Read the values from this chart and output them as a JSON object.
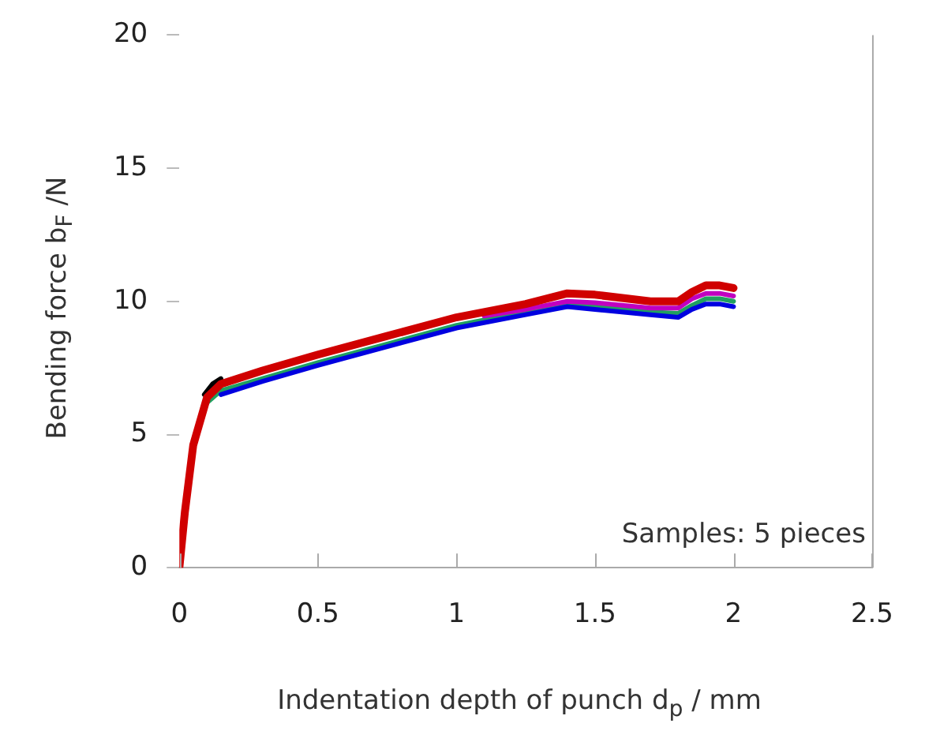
{
  "chart_data": {
    "type": "line",
    "xlabel": "Indentation depth of punch d$_{p}$ / mm",
    "ylabel": "Bending force  b$_{F}$ /N",
    "xlim": [
      0,
      2.5
    ],
    "xticks": [
      0,
      0.5,
      1,
      1.5,
      2,
      2.5
    ],
    "ylim": [
      0,
      20
    ],
    "yticks": [
      0,
      5,
      10,
      15,
      20
    ],
    "grid": false,
    "legend": false,
    "marker": "none",
    "line_style": "solid",
    "annotations": [
      "Samples: 5 pieces"
    ],
    "series": [
      {
        "color": "#000000",
        "x": [
          0.09,
          0.12,
          0.15
        ],
        "values": [
          6.5,
          6.9,
          7.1
        ]
      },
      {
        "color": "#20a060",
        "x": [
          0.1,
          0.15,
          0.3,
          0.5,
          0.75,
          1.0,
          1.25,
          1.4,
          1.5,
          1.7,
          1.8,
          1.85,
          1.9,
          1.95,
          2.0
        ],
        "values": [
          6.2,
          6.65,
          7.1,
          7.7,
          8.4,
          9.1,
          9.6,
          9.9,
          9.8,
          9.6,
          9.55,
          9.85,
          10.1,
          10.1,
          10.0
        ]
      },
      {
        "color": "#0000e0",
        "x": [
          0.15,
          0.3,
          0.5,
          0.75,
          1.0,
          1.25,
          1.4,
          1.5,
          1.7,
          1.8,
          1.85,
          1.9,
          1.95,
          2.0
        ],
        "values": [
          6.5,
          7.0,
          7.6,
          8.3,
          9.0,
          9.5,
          9.8,
          9.7,
          9.5,
          9.4,
          9.7,
          9.9,
          9.9,
          9.8
        ]
      },
      {
        "color": "#c000c0",
        "x": [
          1.1,
          1.25,
          1.4,
          1.5,
          1.7,
          1.8,
          1.85,
          1.9,
          1.95,
          2.0
        ],
        "values": [
          9.45,
          9.7,
          10.0,
          9.95,
          9.75,
          9.75,
          10.1,
          10.3,
          10.3,
          10.2
        ]
      },
      {
        "color": "#d00000",
        "x": [
          0,
          0.02,
          0.05,
          0.1,
          0.15,
          0.3,
          0.5,
          0.75,
          1.0,
          1.25,
          1.4,
          1.5,
          1.7,
          1.8,
          1.85,
          1.9,
          1.95,
          2.0
        ],
        "values": [
          0,
          2.1,
          4.6,
          6.4,
          6.9,
          7.4,
          8.0,
          8.7,
          9.4,
          9.9,
          10.3,
          10.25,
          10.0,
          10.0,
          10.35,
          10.6,
          10.6,
          10.5
        ]
      }
    ]
  }
}
